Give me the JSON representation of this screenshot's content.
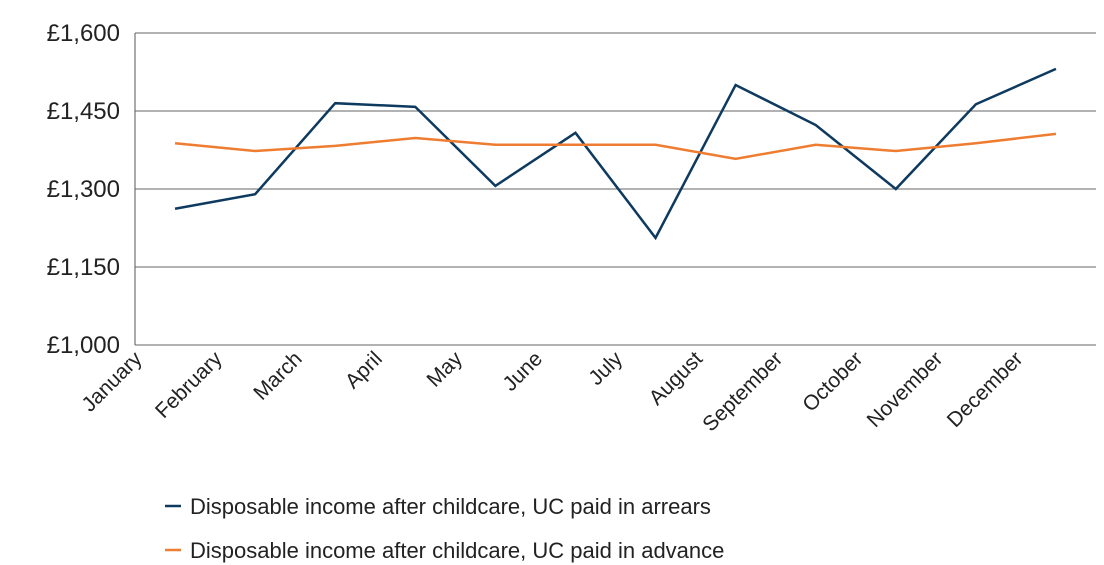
{
  "chart_data": {
    "type": "line",
    "categories": [
      "January",
      "February",
      "March",
      "April",
      "May",
      "June",
      "July",
      "August",
      "September",
      "October",
      "November",
      "December"
    ],
    "series": [
      {
        "name": "Disposable income after childcare, UC paid in arrears",
        "color": "#0e3a5f",
        "values": [
          1262,
          1290,
          1465,
          1458,
          1306,
          1408,
          1206,
          1500,
          1423,
          1300,
          1463,
          1531
        ]
      },
      {
        "name": "Disposable income after childcare, UC paid in advance",
        "color": "#ee7d31",
        "values": [
          1388,
          1373,
          1383,
          1398,
          1385,
          1385,
          1385,
          1358,
          1385,
          1373,
          1388,
          1406
        ]
      }
    ],
    "ylim": [
      1000,
      1600
    ],
    "yticks": [
      {
        "value": 1000,
        "label": "£1,000"
      },
      {
        "value": 1150,
        "label": "£1,150"
      },
      {
        "value": 1300,
        "label": "£1,300"
      },
      {
        "value": 1450,
        "label": "£1,450"
      },
      {
        "value": 1600,
        "label": "£1,600"
      }
    ],
    "grid": true,
    "legend": "bottom"
  }
}
